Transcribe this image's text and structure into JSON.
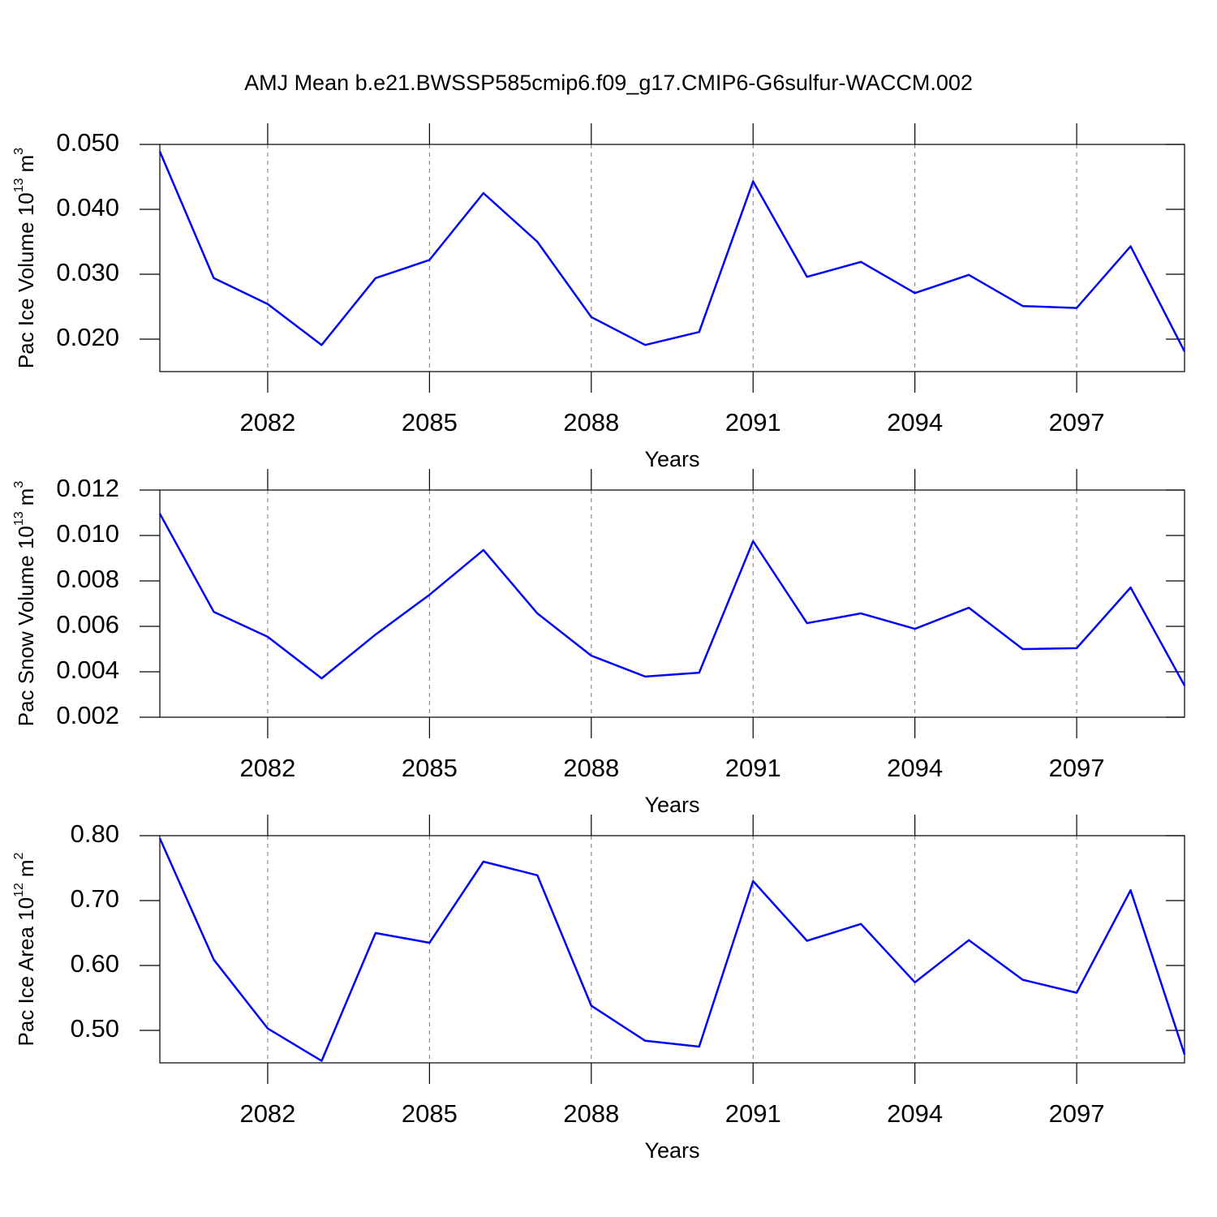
{
  "title": "AMJ Mean b.e21.BWSSP585cmip6.f09_g17.CMIP6-G6sulfur-WACCM.002",
  "chart_data": [
    {
      "type": "line",
      "xlabel": "Years",
      "ylabel": [
        "Pac Ice Volume 10",
        "13",
        "m",
        "3"
      ],
      "x": [
        2080,
        2081,
        2082,
        2083,
        2084,
        2085,
        2086,
        2087,
        2088,
        2089,
        2090,
        2091,
        2092,
        2093,
        2094,
        2095,
        2096,
        2097,
        2098,
        2099
      ],
      "series": [
        {
          "color": "#0000ff",
          "values": [
            0.0489,
            0.0294,
            0.0254,
            0.0191,
            0.0294,
            0.0322,
            0.0425,
            0.035,
            0.0234,
            0.0191,
            0.0211,
            0.0443,
            0.0296,
            0.0319,
            0.0271,
            0.0299,
            0.0251,
            0.0248,
            0.0343,
            0.0181
          ]
        }
      ],
      "xlim": [
        2080,
        2099
      ],
      "xticks": [
        2082,
        2085,
        2088,
        2091,
        2094,
        2097
      ],
      "ylim": [
        0.015,
        0.05
      ],
      "yticks": [
        {
          "value": 0.02,
          "label": "0.020"
        },
        {
          "value": 0.03,
          "label": "0.030"
        },
        {
          "value": 0.04,
          "label": "0.040"
        },
        {
          "value": 0.05,
          "label": "0.050"
        }
      ],
      "grid": true
    },
    {
      "type": "line",
      "xlabel": "Years",
      "ylabel": [
        "Pac Snow Volume 10",
        "13",
        "m",
        "3"
      ],
      "x": [
        2080,
        2081,
        2082,
        2083,
        2084,
        2085,
        2086,
        2087,
        2088,
        2089,
        2090,
        2091,
        2092,
        2093,
        2094,
        2095,
        2096,
        2097,
        2098,
        2099
      ],
      "series": [
        {
          "color": "#0000ff",
          "values": [
            0.01096,
            0.00664,
            0.00554,
            0.00371,
            0.00564,
            0.00739,
            0.00936,
            0.00657,
            0.00471,
            0.00379,
            0.00396,
            0.00975,
            0.00614,
            0.00657,
            0.00589,
            0.00682,
            0.005,
            0.00504,
            0.00771,
            0.00339
          ]
        }
      ],
      "xlim": [
        2080,
        2099
      ],
      "xticks": [
        2082,
        2085,
        2088,
        2091,
        2094,
        2097
      ],
      "ylim": [
        0.002,
        0.012
      ],
      "yticks": [
        0.002,
        0.004,
        0.006,
        0.008,
        {
          "value": 0.01,
          "label": "0.010"
        },
        0.012
      ],
      "grid": true
    },
    {
      "type": "line",
      "xlabel": "Years",
      "ylabel": [
        "Pac Ice Area 10",
        "12",
        "m",
        "2"
      ],
      "x": [
        2080,
        2081,
        2082,
        2083,
        2084,
        2085,
        2086,
        2087,
        2088,
        2089,
        2090,
        2091,
        2092,
        2093,
        2094,
        2095,
        2096,
        2097,
        2098,
        2099
      ],
      "series": [
        {
          "color": "#0000ff",
          "values": [
            0.796,
            0.609,
            0.503,
            0.453,
            0.65,
            0.635,
            0.76,
            0.739,
            0.538,
            0.484,
            0.475,
            0.73,
            0.638,
            0.664,
            0.574,
            0.639,
            0.578,
            0.558,
            0.716,
            0.463
          ]
        }
      ],
      "xlim": [
        2080,
        2099
      ],
      "xticks": [
        2082,
        2085,
        2088,
        2091,
        2094,
        2097
      ],
      "ylim": [
        0.45,
        0.8
      ],
      "yticks": [
        {
          "value": 0.5,
          "label": "0.50"
        },
        {
          "value": 0.6,
          "label": "0.60"
        },
        {
          "value": 0.7,
          "label": "0.70"
        },
        {
          "value": 0.8,
          "label": "0.80"
        }
      ],
      "grid": true
    }
  ]
}
